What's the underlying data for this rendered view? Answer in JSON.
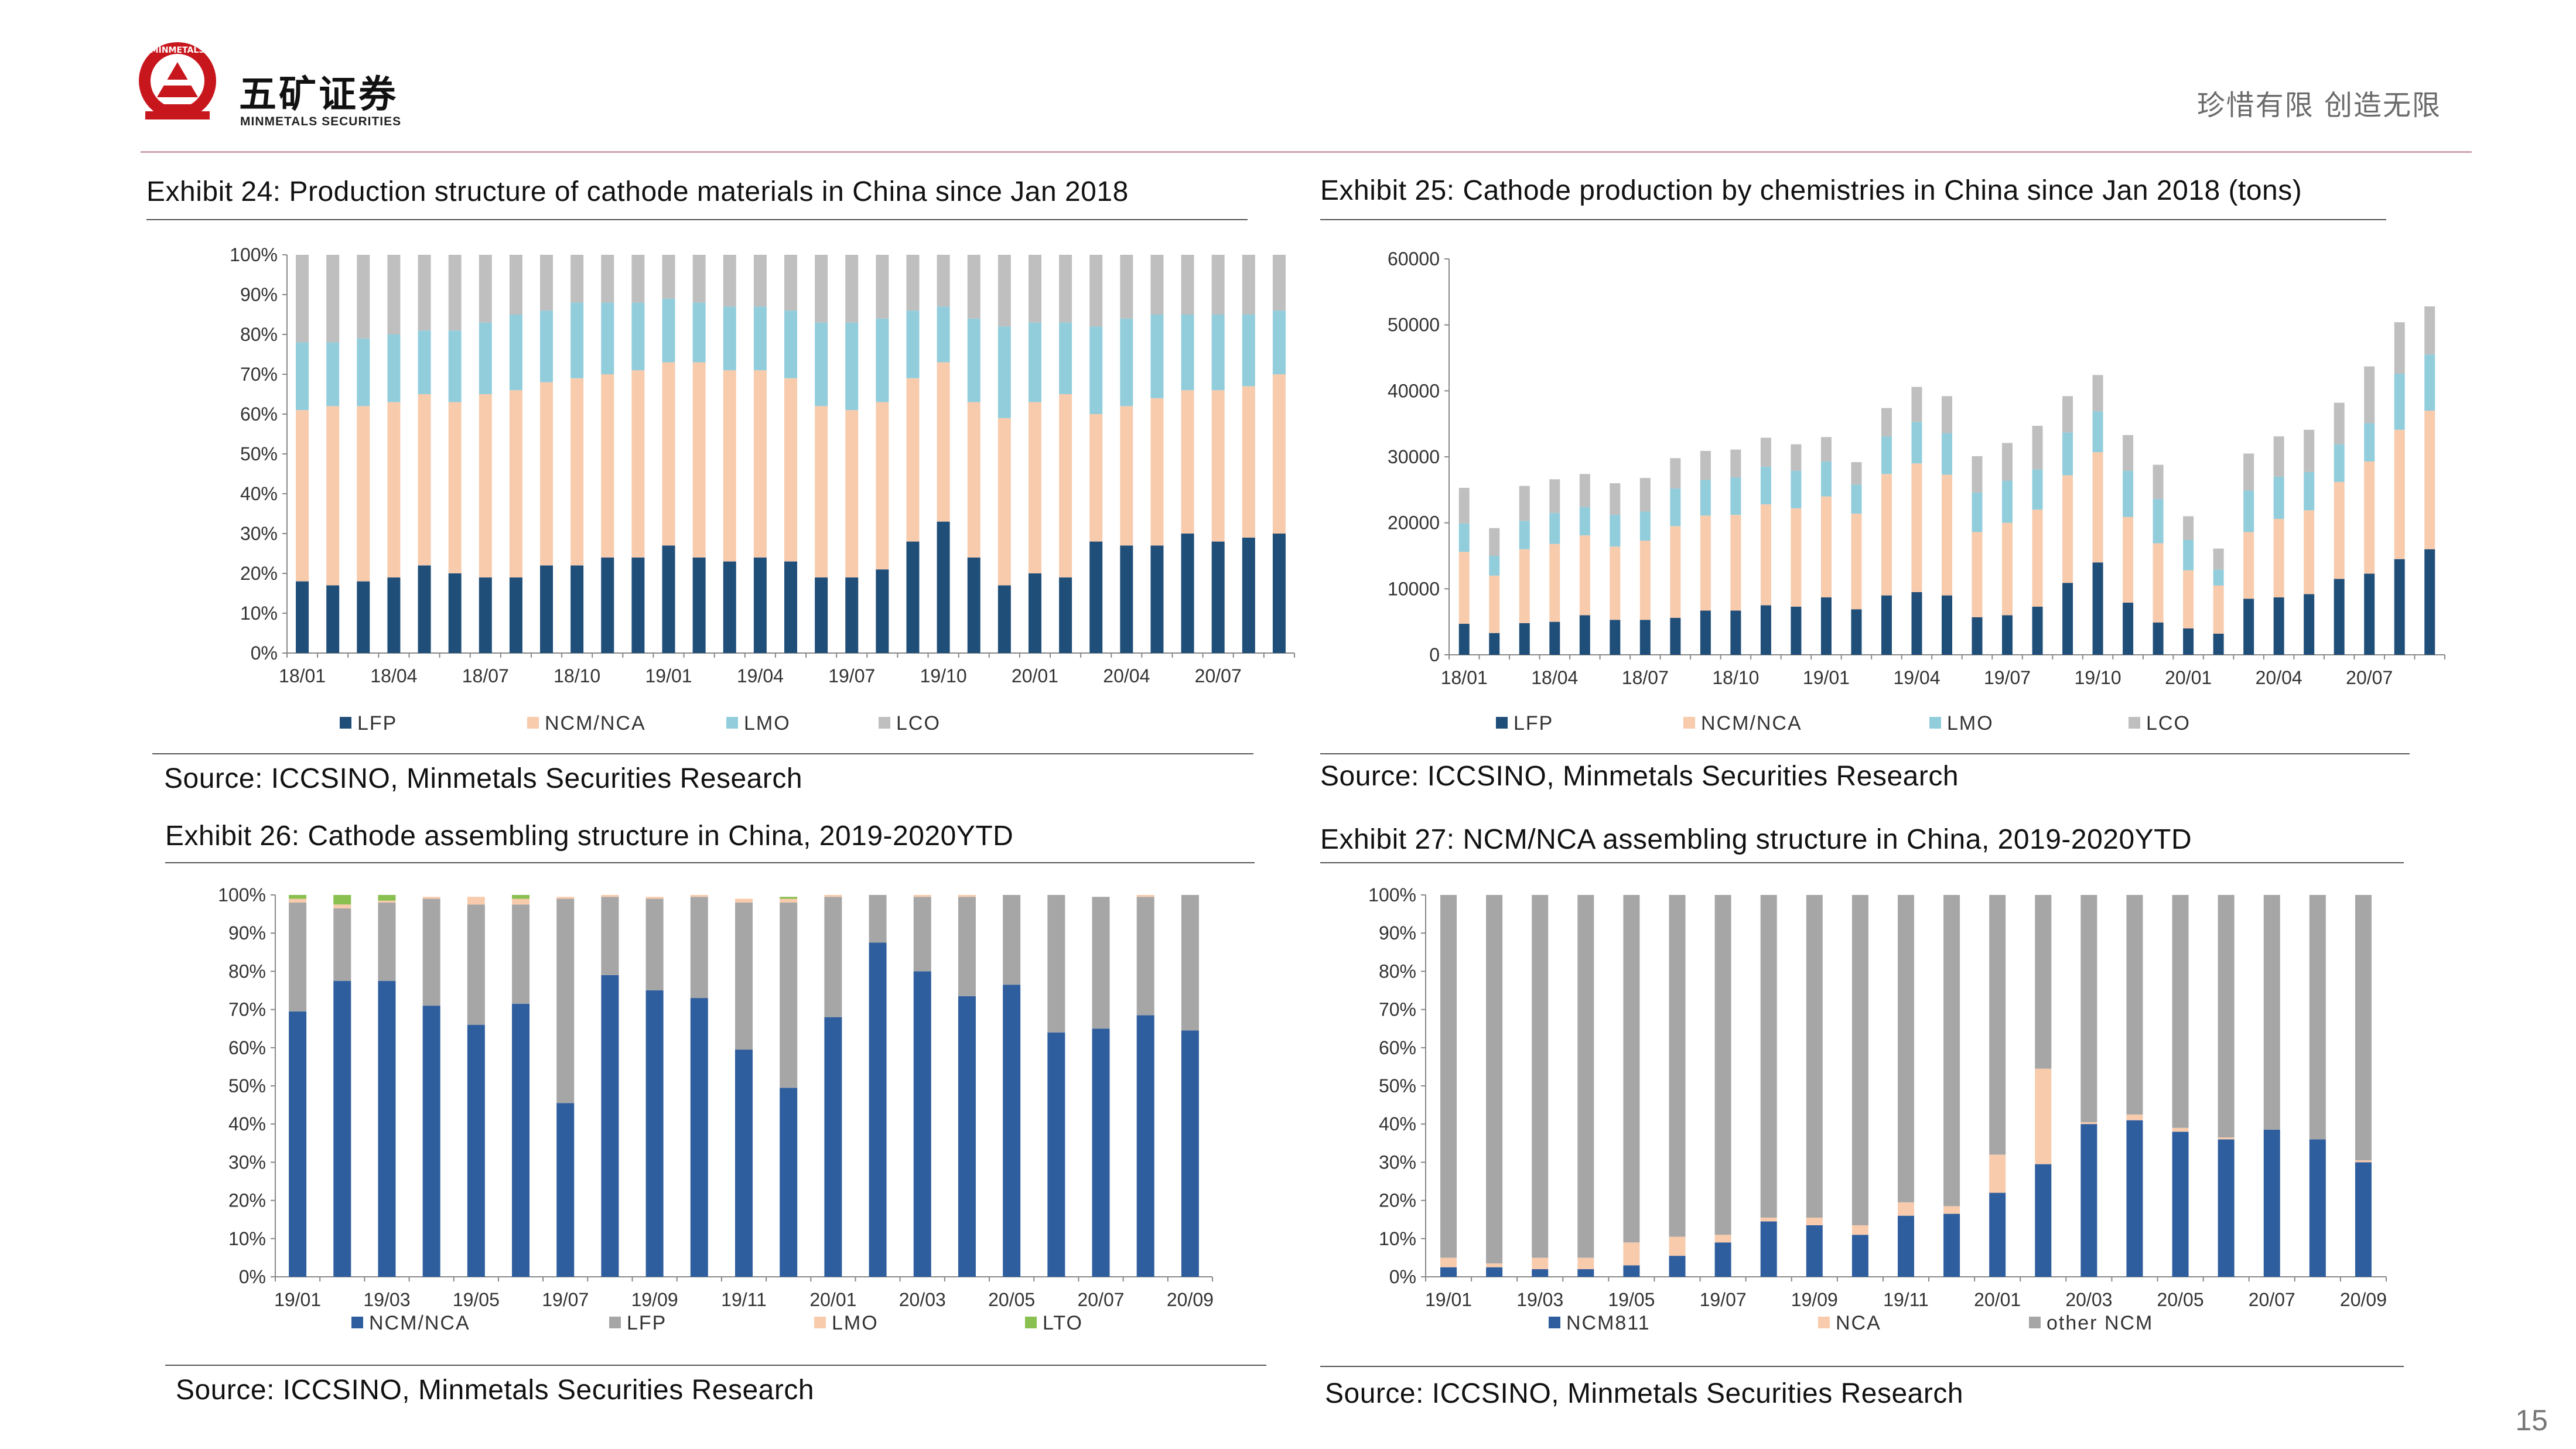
{
  "brand": {
    "name_cn": "五矿证券",
    "name_en": "MINMETALS SECURITIES",
    "seal_text": "MINMETALS",
    "slogan": "珍惜有限  创造无限"
  },
  "colors": {
    "LFP_dark": "#1f4e79",
    "NCM_orange": "#f8cbad",
    "LMO_blue": "#92cddc",
    "LCO_gray": "#bfbfbf",
    "blue2": "#2e5e9e",
    "gray2": "#a6a6a6",
    "LTO_green": "#8ac050"
  },
  "page_number": "15",
  "charts": [
    {
      "title": "Exhibit 24: Production structure of cathode materials in China since Jan 2018",
      "source": "Source: ICCSINO, Minmetals Securities Research",
      "chart_data": {
        "type": "bar",
        "stacked": true,
        "ylim": [
          0,
          100
        ],
        "ytick_step": 10,
        "y_format": "percent",
        "xtick_labels": [
          "18/01",
          "18/04",
          "18/07",
          "18/10",
          "19/01",
          "19/04",
          "19/07",
          "19/10",
          "20/01",
          "20/04",
          "20/07"
        ],
        "xtick_every": 3,
        "series": [
          {
            "name": "LFP",
            "color": "#1f4e79",
            "values": [
              18,
              17,
              18,
              19,
              22,
              20,
              19,
              19,
              22,
              22,
              24,
              24,
              27,
              24,
              23,
              24,
              23,
              19,
              19,
              21,
              28,
              33,
              24,
              17,
              20,
              19,
              28,
              27,
              27,
              30,
              28,
              29,
              30
            ]
          },
          {
            "name": "NCM/NCA",
            "color": "#f8cbad",
            "values": [
              43,
              45,
              44,
              44,
              43,
              43,
              46,
              47,
              46,
              47,
              46,
              47,
              46,
              49,
              48,
              47,
              46,
              43,
              42,
              42,
              41,
              40,
              39,
              42,
              43,
              46,
              32,
              35,
              37,
              36,
              38,
              38,
              40
            ]
          },
          {
            "name": "LMO",
            "color": "#92cddc",
            "values": [
              17,
              16,
              17,
              17,
              16,
              18,
              18,
              19,
              18,
              19,
              18,
              17,
              16,
              15,
              16,
              16,
              17,
              21,
              22,
              21,
              17,
              14,
              21,
              23,
              20,
              18,
              22,
              22,
              21,
              19,
              19,
              18,
              16
            ]
          },
          {
            "name": "LCO",
            "color": "#bfbfbf",
            "values": [
              22,
              22,
              21,
              20,
              19,
              19,
              17,
              15,
              14,
              12,
              12,
              12,
              11,
              12,
              13,
              13,
              14,
              17,
              17,
              16,
              14,
              13,
              16,
              18,
              17,
              17,
              18,
              16,
              15,
              15,
              15,
              15,
              14
            ]
          }
        ]
      }
    },
    {
      "title": "Exhibit 25: Cathode production by chemistries in China since Jan 2018 (tons)",
      "source": "Source: ICCSINO, Minmetals Securities Research",
      "chart_data": {
        "type": "bar",
        "stacked": true,
        "ylim": [
          0,
          60000
        ],
        "ytick_step": 10000,
        "y_format": "number",
        "xtick_labels": [
          "18/01",
          "18/04",
          "18/07",
          "18/10",
          "19/01",
          "19/04",
          "19/07",
          "19/10",
          "20/01",
          "20/04",
          "20/07"
        ],
        "xtick_every": 3,
        "series": [
          {
            "name": "LFP",
            "color": "#1f4e79",
            "values": [
              4700,
              3300,
              4800,
              5000,
              6000,
              5300,
              5300,
              5600,
              6700,
              6700,
              7500,
              7300,
              8700,
              6900,
              9000,
              9500,
              9000,
              5700,
              6000,
              7300,
              10900,
              14000,
              7900,
              4900,
              4000,
              3200,
              8500,
              8700,
              9200,
              11500,
              12300,
              14500,
              16000
            ]
          },
          {
            "name": "NCM/NCA",
            "color": "#f8cbad",
            "values": [
              10900,
              8700,
              11200,
              11800,
              12100,
              11100,
              12000,
              13900,
              14400,
              14500,
              15300,
              14900,
              15300,
              14500,
              18400,
              19500,
              18300,
              12900,
              14000,
              14700,
              16300,
              16700,
              13000,
              12000,
              8800,
              7300,
              10100,
              11900,
              12700,
              14700,
              17000,
              19600,
              21000
            ]
          },
          {
            "name": "LMO",
            "color": "#92cddc",
            "values": [
              4300,
              3000,
              4300,
              4700,
              4300,
              4800,
              4400,
              5700,
              5400,
              5700,
              5700,
              5700,
              5300,
              4400,
              5700,
              6300,
              6300,
              6000,
              6400,
              6100,
              6500,
              6200,
              7000,
              6700,
              4600,
              2400,
              6300,
              6400,
              5800,
              5700,
              5800,
              8500,
              8500
            ]
          },
          {
            "name": "LCO",
            "color": "#bfbfbf",
            "values": [
              5400,
              4200,
              5300,
              5100,
              5000,
              4800,
              5100,
              4600,
              4400,
              4200,
              4400,
              4000,
              3700,
              3400,
              4300,
              5300,
              5600,
              5500,
              5700,
              6600,
              5500,
              5500,
              5400,
              5200,
              3600,
              3200,
              5600,
              6100,
              6400,
              6300,
              8600,
              7800,
              7300
            ]
          }
        ]
      }
    },
    {
      "title": "Exhibit 26: Cathode assembling structure in China, 2019-2020YTD",
      "source": "Source: ICCSINO, Minmetals Securities Research",
      "chart_data": {
        "type": "bar",
        "stacked": true,
        "ylim": [
          0,
          100
        ],
        "ytick_step": 10,
        "y_format": "percent",
        "xtick_labels": [
          "19/01",
          "19/03",
          "19/05",
          "19/07",
          "19/09",
          "19/11",
          "20/01",
          "20/03",
          "20/05",
          "20/07",
          "20/09"
        ],
        "xtick_every": 2,
        "series": [
          {
            "name": "NCM/NCA",
            "color": "#2e5e9e",
            "values": [
              69.5,
              77.5,
              77.5,
              71,
              66,
              71.5,
              45.5,
              79,
              75,
              73,
              59.5,
              49.5,
              68,
              87.5,
              80,
              73.5,
              76.5,
              64,
              65,
              68.5,
              64.5
            ]
          },
          {
            "name": "LFP",
            "color": "#a6a6a6",
            "values": [
              28.5,
              19,
              20.5,
              28,
              31.5,
              26,
              53.5,
              20.5,
              24,
              26.5,
              38.5,
              48.5,
              31.5,
              12.5,
              19.5,
              26,
              23.5,
              36,
              34.5,
              31,
              35.5
            ]
          },
          {
            "name": "LMO",
            "color": "#f8cbad",
            "values": [
              1,
              1,
              0.5,
              0.5,
              2,
              1.5,
              0.5,
              0.5,
              0.5,
              0.5,
              1,
              1,
              0.5,
              0,
              0.5,
              0.5,
              0,
              0,
              0,
              0.5,
              0
            ]
          },
          {
            "name": "LTO",
            "color": "#8ac050",
            "values": [
              1,
              2.5,
              1.5,
              0,
              0,
              1,
              0,
              0,
              0,
              0,
              0,
              0.5,
              0,
              0,
              0,
              0,
              0,
              0,
              0,
              0,
              0
            ]
          }
        ]
      }
    },
    {
      "title": "Exhibit 27: NCM/NCA assembling structure in China, 2019-2020YTD",
      "source": "Source: ICCSINO, Minmetals Securities Research",
      "chart_data": {
        "type": "bar",
        "stacked": true,
        "ylim": [
          0,
          100
        ],
        "ytick_step": 10,
        "y_format": "percent",
        "xtick_labels": [
          "19/01",
          "19/03",
          "19/05",
          "19/07",
          "19/09",
          "19/11",
          "20/01",
          "20/03",
          "20/05",
          "20/07",
          "20/09"
        ],
        "xtick_every": 2,
        "series": [
          {
            "name": "NCM811",
            "color": "#2e5e9e",
            "values": [
              2.5,
              2.5,
              2,
              2,
              3,
              5.5,
              9,
              14.5,
              13.5,
              11,
              16,
              16.5,
              22,
              29.5,
              40,
              41,
              38,
              36,
              38.5,
              36,
              30
            ]
          },
          {
            "name": "NCA",
            "color": "#f8cbad",
            "values": [
              2.5,
              1,
              3,
              3,
              6,
              5,
              2,
              1,
              2,
              2.5,
              3.5,
              2,
              10,
              25,
              0.5,
              1.5,
              1,
              0.5,
              0,
              0,
              0.5
            ]
          },
          {
            "name": "other NCM",
            "color": "#a6a6a6",
            "values": [
              95,
              96.5,
              95,
              95,
              91,
              89.5,
              89,
              84.5,
              84.5,
              86.5,
              80.5,
              81.5,
              68,
              45.5,
              59.5,
              57.5,
              61,
              63.5,
              61.5,
              64,
              69.5
            ]
          }
        ]
      }
    }
  ]
}
